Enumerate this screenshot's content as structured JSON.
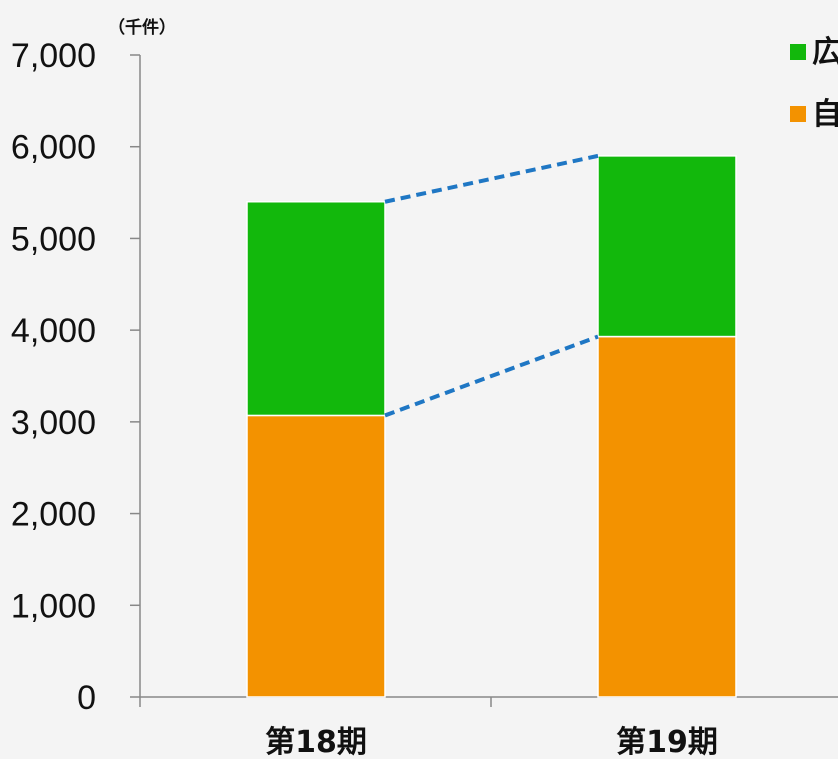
{
  "chart_data": {
    "type": "bar",
    "stacked": true,
    "categories": [
      "第18期",
      "第19期"
    ],
    "series": [
      {
        "name": "自",
        "color": "#f39200",
        "values": [
          3070,
          3930
        ]
      },
      {
        "name": "広",
        "color": "#12b80c",
        "values": [
          2330,
          1970
        ]
      }
    ],
    "ylim": [
      0,
      7000
    ],
    "yticks": [
      "0",
      "1,000",
      "2,000",
      "3,000",
      "4,000",
      "5,000",
      "6,000",
      "7,000"
    ],
    "yunit": "（千件）",
    "connector_color": "#1f77c4",
    "legend_position": "top-right",
    "grid": false
  }
}
